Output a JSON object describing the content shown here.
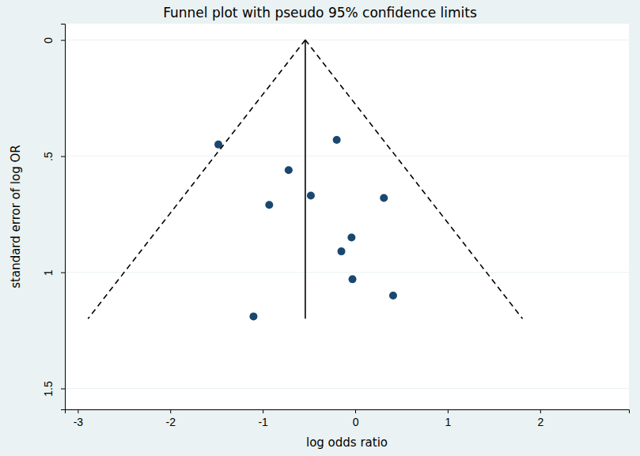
{
  "chart_data": {
    "type": "scatter",
    "title": "Funnel plot with pseudo 95% confidence limits",
    "x_label": "log odds ratio",
    "y_label": "standard error of log OR",
    "xlim": [
      -3.14,
      2.96
    ],
    "xticks": [
      -3,
      -2,
      -1,
      0,
      1,
      2
    ],
    "ylim": [
      -0.07,
      1.59
    ],
    "yticks": [
      0,
      {
        "value": 0.5,
        "label": ".5"
      },
      1,
      {
        "value": 1.5,
        "label": "1.5"
      }
    ],
    "grid": true,
    "series": [
      {
        "type": "scatter",
        "color": "#1a476f",
        "marker": "circle",
        "x": [
          -1.48,
          -0.2,
          -0.72,
          -0.48,
          -0.93,
          0.31,
          -0.04,
          -0.15,
          -0.03,
          0.41,
          -1.1
        ],
        "values": [
          0.45,
          0.43,
          0.56,
          0.67,
          0.71,
          0.68,
          0.85,
          0.91,
          1.03,
          1.1,
          1.19
        ]
      },
      {
        "type": "line",
        "color": "#000000",
        "line_style": "solid",
        "x": [
          -0.54,
          -0.54
        ],
        "values": [
          0,
          1.2
        ]
      },
      {
        "type": "line",
        "color": "#000000",
        "line_style": "dashed",
        "x": [
          -0.54,
          -2.89
        ],
        "values": [
          0,
          1.2
        ]
      },
      {
        "type": "line",
        "color": "#000000",
        "line_style": "dashed",
        "x": [
          -0.54,
          1.81
        ],
        "values": [
          0,
          1.2
        ]
      }
    ]
  }
}
